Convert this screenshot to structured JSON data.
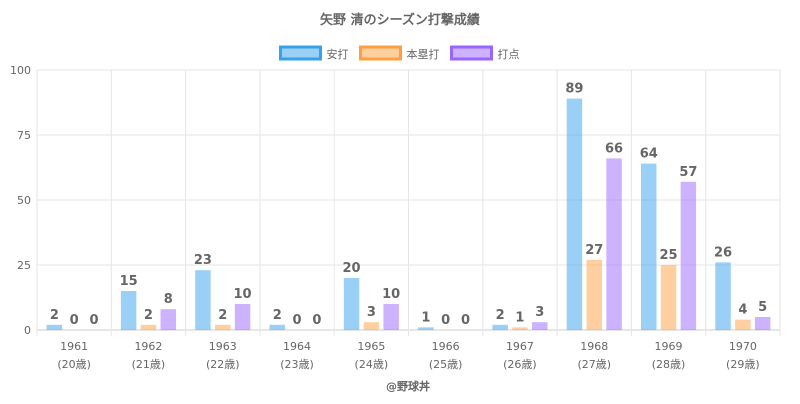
{
  "chart_data": {
    "type": "bar",
    "title": "矢野 清のシーズン打撃成績",
    "categories": [
      "1961",
      "1962",
      "1963",
      "1964",
      "1965",
      "1966",
      "1967",
      "1968",
      "1969",
      "1970"
    ],
    "sublabels": [
      "(20歳)",
      "(21歳)",
      "(22歳)",
      "(23歳)",
      "(24歳)",
      "(25歳)",
      "(26歳)",
      "(27歳)",
      "(28歳)",
      "(29歳)"
    ],
    "ylim": [
      0,
      100
    ],
    "yticks": [
      0,
      25,
      50,
      75,
      100
    ],
    "grid": true,
    "legend_position": "top",
    "series": [
      {
        "name": "安打",
        "values": [
          2,
          15,
          23,
          2,
          20,
          1,
          2,
          89,
          64,
          26
        ],
        "color": "#36a2eb"
      },
      {
        "name": "本塁打",
        "values": [
          0,
          2,
          2,
          0,
          3,
          0,
          1,
          27,
          25,
          4
        ],
        "color": "#ff9f40"
      },
      {
        "name": "打点",
        "values": [
          0,
          8,
          10,
          0,
          10,
          0,
          3,
          66,
          57,
          5
        ],
        "color": "#9966ff"
      }
    ],
    "footer": "@野球丼"
  }
}
